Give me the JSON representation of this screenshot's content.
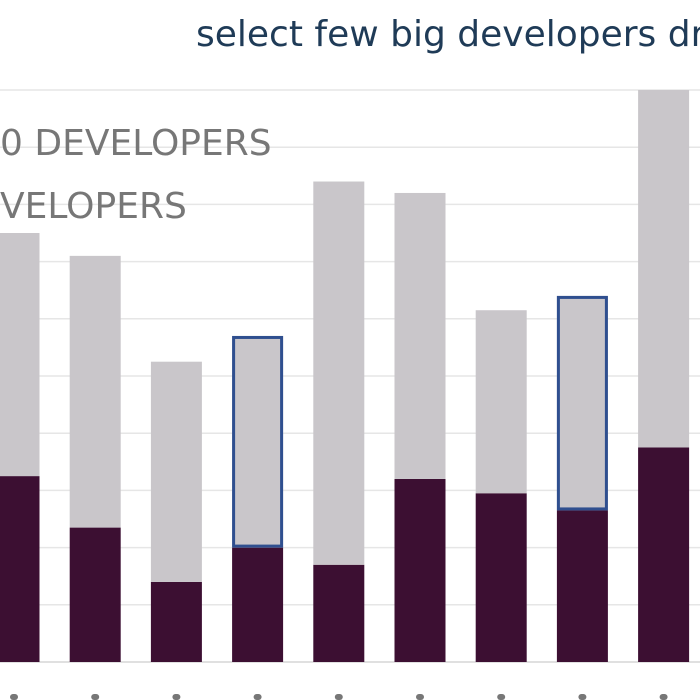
{
  "chart_data": {
    "type": "bar",
    "stacked": true,
    "title": "select few big developers dro",
    "legend": {
      "placement": "top-left",
      "entries": [
        "0 DEVELOPERS",
        "VELOPERS"
      ]
    },
    "categories": [
      "",
      "",
      "",
      "",
      "",
      "",
      "",
      "",
      ""
    ],
    "ylim": [
      0,
      1000
    ],
    "grid": true,
    "series": [
      {
        "values": [
          325,
          235,
          140,
          200,
          170,
          320,
          295,
          265,
          375
        ],
        "color": "#3c0f32"
      },
      {
        "values": [
          425,
          475,
          385,
          370,
          670,
          500,
          320,
          375,
          625
        ],
        "color": "#c9c6ca"
      }
    ],
    "highlighted_categories": [
      3,
      7
    ],
    "highlight_color": "#2f4f8f"
  }
}
